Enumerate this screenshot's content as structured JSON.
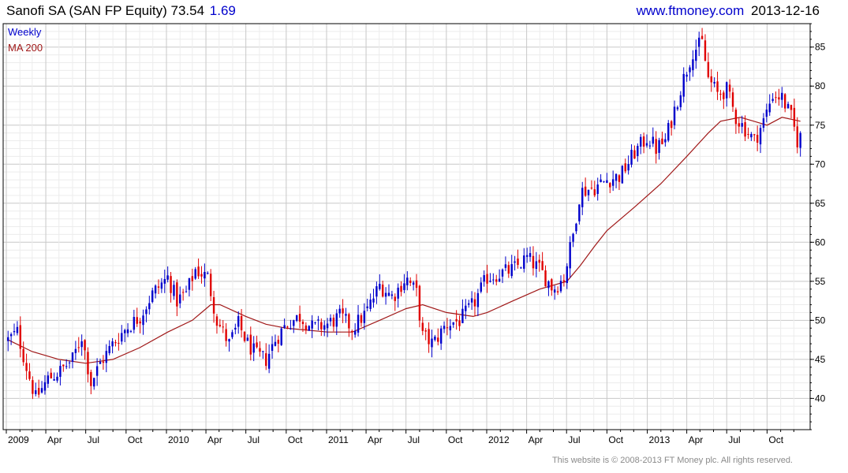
{
  "header": {
    "title": "Sanofi SA (SAN FP Equity)",
    "last_price": "73.54",
    "change": "1.69",
    "site": "www.ftmoney.com",
    "date": "2013-12-16"
  },
  "footer": {
    "copyright": "This website is © 2008-2013 FT Money plc. All rights reserved."
  },
  "colors": {
    "up": "#0000cc",
    "down": "#e00000",
    "ma": "#a01818",
    "grid": "#d8d8d8",
    "axis": "#000000",
    "legend_weekly": "#0000cc",
    "legend_ma": "#a01818"
  },
  "chart_data": {
    "type": "candlestick",
    "title": "Sanofi SA (SAN FP Equity)",
    "frequency": "Weekly",
    "x_axis": {
      "start": "2009-01",
      "end": "2013-12",
      "tick_labels": [
        "2009",
        "Apr",
        "Jul",
        "Oct",
        "2010",
        "Apr",
        "Jul",
        "Oct",
        "2011",
        "Apr",
        "Jul",
        "Oct",
        "2012",
        "Apr",
        "Jul",
        "Oct",
        "2013",
        "Apr",
        "Jul",
        "Oct"
      ]
    },
    "y_axis": {
      "ylim": [
        36,
        88
      ],
      "ticks": [
        40,
        45,
        50,
        55,
        60,
        65,
        70,
        75,
        80,
        85
      ],
      "position": "right"
    },
    "grid": true,
    "legend": [
      "Weekly",
      "MA 200"
    ],
    "legend_position": "top-left",
    "price_path": [
      [
        "2009-01-05",
        47.5
      ],
      [
        "2009-01-26",
        48.5
      ],
      [
        "2009-02-16",
        44.0
      ],
      [
        "2009-03-09",
        40.0
      ],
      [
        "2009-04-06",
        42.5
      ],
      [
        "2009-05-04",
        43.5
      ],
      [
        "2009-06-01",
        45.0
      ],
      [
        "2009-06-22",
        48.0
      ],
      [
        "2009-07-13",
        42.0
      ],
      [
        "2009-08-03",
        44.5
      ],
      [
        "2009-09-01",
        47.0
      ],
      [
        "2009-10-01",
        49.0
      ],
      [
        "2009-11-02",
        50.5
      ],
      [
        "2009-12-01",
        53.5
      ],
      [
        "2010-01-04",
        55.5
      ],
      [
        "2010-01-25",
        52.5
      ],
      [
        "2010-02-15",
        53.5
      ],
      [
        "2010-03-08",
        56.5
      ],
      [
        "2010-04-05",
        55.5
      ],
      [
        "2010-04-26",
        50.0
      ],
      [
        "2010-05-24",
        47.0
      ],
      [
        "2010-06-14",
        49.5
      ],
      [
        "2010-07-05",
        47.0
      ],
      [
        "2010-07-26",
        45.5
      ],
      [
        "2010-08-16",
        45.0
      ],
      [
        "2010-09-06",
        47.5
      ],
      [
        "2010-10-01",
        49.5
      ],
      [
        "2010-11-01",
        50.5
      ],
      [
        "2010-12-01",
        49.0
      ],
      [
        "2011-01-03",
        49.5
      ],
      [
        "2011-02-01",
        50.5
      ],
      [
        "2011-03-01",
        49.0
      ],
      [
        "2011-04-01",
        51.0
      ],
      [
        "2011-05-02",
        54.5
      ],
      [
        "2011-06-01",
        53.0
      ],
      [
        "2011-07-01",
        55.5
      ],
      [
        "2011-07-25",
        53.5
      ],
      [
        "2011-08-08",
        48.0
      ],
      [
        "2011-09-01",
        47.0
      ],
      [
        "2011-10-01",
        49.5
      ],
      [
        "2011-11-01",
        50.0
      ],
      [
        "2011-12-01",
        52.0
      ],
      [
        "2012-01-02",
        55.5
      ],
      [
        "2012-02-01",
        56.0
      ],
      [
        "2012-03-01",
        56.5
      ],
      [
        "2012-04-02",
        58.0
      ],
      [
        "2012-05-01",
        56.5
      ],
      [
        "2012-06-01",
        54.0
      ],
      [
        "2012-06-25",
        55.5
      ],
      [
        "2012-07-16",
        61.0
      ],
      [
        "2012-08-01",
        66.5
      ],
      [
        "2012-09-03",
        67.0
      ],
      [
        "2012-10-01",
        68.0
      ],
      [
        "2012-11-01",
        68.5
      ],
      [
        "2012-12-03",
        71.5
      ],
      [
        "2013-01-02",
        73.5
      ],
      [
        "2013-01-21",
        72.0
      ],
      [
        "2013-02-11",
        73.0
      ],
      [
        "2013-03-04",
        77.0
      ],
      [
        "2013-03-25",
        81.0
      ],
      [
        "2013-04-15",
        84.5
      ],
      [
        "2013-05-06",
        85.5
      ],
      [
        "2013-05-20",
        81.0
      ],
      [
        "2013-06-10",
        79.0
      ],
      [
        "2013-07-01",
        79.5
      ],
      [
        "2013-07-22",
        76.0
      ],
      [
        "2013-08-12",
        74.5
      ],
      [
        "2013-09-02",
        73.0
      ],
      [
        "2013-09-23",
        75.5
      ],
      [
        "2013-10-14",
        79.0
      ],
      [
        "2013-11-04",
        78.5
      ],
      [
        "2013-11-25",
        76.0
      ],
      [
        "2013-12-09",
        73.0
      ],
      [
        "2013-12-16",
        73.54
      ]
    ],
    "ma200_path": [
      [
        "2009-01-05",
        47.5
      ],
      [
        "2009-03-01",
        46.0
      ],
      [
        "2009-05-01",
        45.0
      ],
      [
        "2009-07-01",
        44.5
      ],
      [
        "2009-09-01",
        45.0
      ],
      [
        "2009-11-01",
        46.5
      ],
      [
        "2010-01-04",
        48.5
      ],
      [
        "2010-03-01",
        50.0
      ],
      [
        "2010-04-12",
        52.0
      ],
      [
        "2010-05-03",
        52.0
      ],
      [
        "2010-07-01",
        50.5
      ],
      [
        "2010-08-16",
        49.5
      ],
      [
        "2010-10-01",
        49.0
      ],
      [
        "2011-01-03",
        48.5
      ],
      [
        "2011-03-01",
        48.5
      ],
      [
        "2011-05-02",
        50.0
      ],
      [
        "2011-07-01",
        51.5
      ],
      [
        "2011-08-08",
        52.0
      ],
      [
        "2011-10-01",
        51.0
      ],
      [
        "2011-12-01",
        50.5
      ],
      [
        "2012-01-02",
        51.0
      ],
      [
        "2012-03-01",
        52.5
      ],
      [
        "2012-05-01",
        54.0
      ],
      [
        "2012-07-02",
        55.0
      ],
      [
        "2012-08-01",
        57.0
      ],
      [
        "2012-09-03",
        59.5
      ],
      [
        "2012-10-01",
        61.5
      ],
      [
        "2012-12-03",
        64.5
      ],
      [
        "2013-02-01",
        67.5
      ],
      [
        "2013-04-01",
        71.0
      ],
      [
        "2013-05-20",
        74.0
      ],
      [
        "2013-06-17",
        75.5
      ],
      [
        "2013-08-01",
        76.0
      ],
      [
        "2013-09-01",
        75.5
      ],
      [
        "2013-10-01",
        75.0
      ],
      [
        "2013-11-04",
        76.0
      ],
      [
        "2013-12-16",
        75.5
      ]
    ]
  }
}
